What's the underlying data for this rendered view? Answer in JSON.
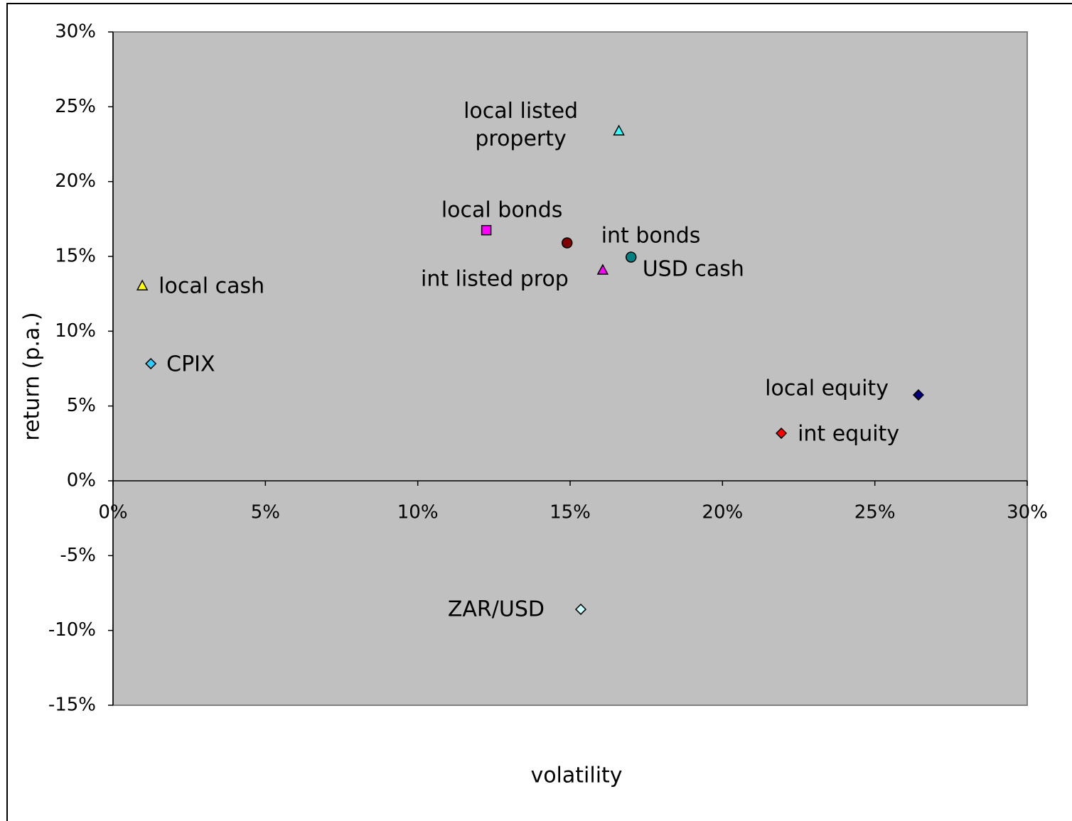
{
  "chart_data": {
    "type": "scatter",
    "x_label": "volatility",
    "y_label": "return (p.a.)",
    "xlim": [
      0,
      30
    ],
    "ylim": [
      -15,
      30
    ],
    "xticks": [
      {
        "value": 0,
        "label": "0%"
      },
      {
        "value": 5,
        "label": "5%"
      },
      {
        "value": 10,
        "label": "10%"
      },
      {
        "value": 15,
        "label": "15%"
      },
      {
        "value": 20,
        "label": "20%"
      },
      {
        "value": 25,
        "label": "25%"
      },
      {
        "value": 30,
        "label": "30%"
      }
    ],
    "yticks": [
      {
        "value": -15,
        "label": "-15%"
      },
      {
        "value": -10,
        "label": "-10%"
      },
      {
        "value": -5,
        "label": "-5%"
      },
      {
        "value": 0,
        "label": "0%"
      },
      {
        "value": 5,
        "label": "5%"
      },
      {
        "value": 10,
        "label": "10%"
      },
      {
        "value": 15,
        "label": "15%"
      },
      {
        "value": 20,
        "label": "20%"
      },
      {
        "value": 25,
        "label": "25%"
      },
      {
        "value": 30,
        "label": "30%"
      }
    ],
    "plot_background": "#c0c0c0",
    "series": [
      {
        "name": "local listed property",
        "marker": "triangle",
        "color": "#33ffff",
        "x": [
          16.6
        ],
        "values": [
          23.4
        ]
      },
      {
        "name": "local bonds",
        "marker": "square",
        "color": "#ff00ff",
        "x": [
          12.25
        ],
        "values": [
          16.75
        ]
      },
      {
        "name": "int bonds",
        "marker": "circle",
        "color": "#800000",
        "x": [
          14.9
        ],
        "values": [
          15.9
        ]
      },
      {
        "name": "USD cash",
        "marker": "circle",
        "color": "#008080",
        "x": [
          17.0
        ],
        "values": [
          14.95
        ]
      },
      {
        "name": "int listed prop",
        "marker": "triangle",
        "color": "#ff00ff",
        "x": [
          16.07
        ],
        "values": [
          14.1
        ]
      },
      {
        "name": "local cash",
        "marker": "triangle",
        "color": "#ffff00",
        "x": [
          0.96
        ],
        "values": [
          13.05
        ]
      },
      {
        "name": "CPIX",
        "marker": "diamond",
        "color": "#33ccff",
        "x": [
          1.24
        ],
        "values": [
          7.83
        ]
      },
      {
        "name": "local equity",
        "marker": "diamond",
        "color": "#000080",
        "x": [
          26.43
        ],
        "values": [
          5.74
        ]
      },
      {
        "name": "int equity",
        "marker": "diamond",
        "color": "#ff0000",
        "x": [
          21.93
        ],
        "values": [
          3.18
        ]
      },
      {
        "name": "ZAR/USD",
        "marker": "diamond",
        "color": "#ccffff",
        "x": [
          15.35
        ],
        "values": [
          -8.59
        ]
      }
    ]
  }
}
